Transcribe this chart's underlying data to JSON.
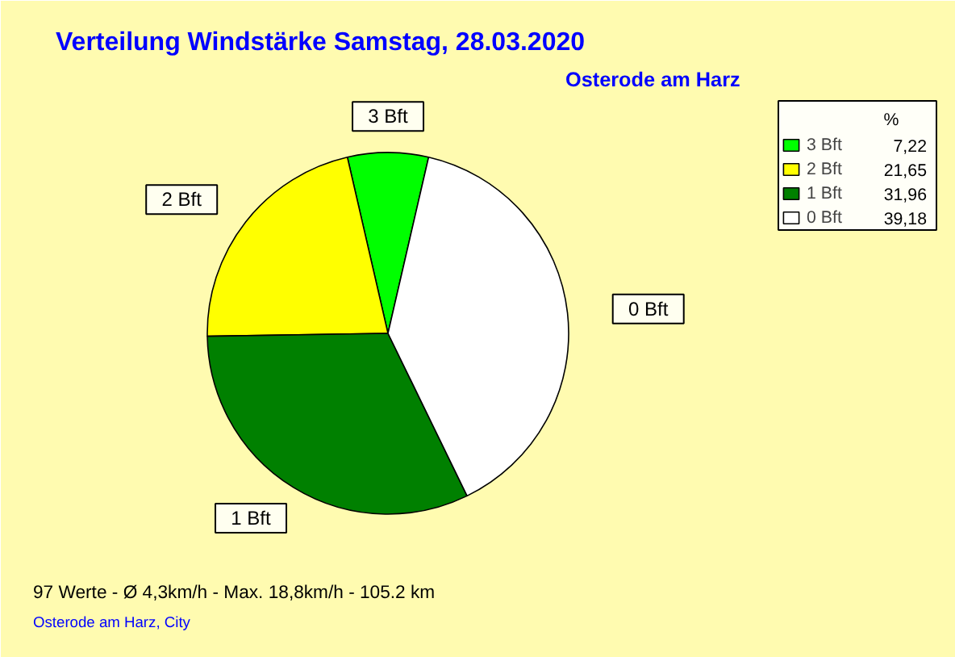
{
  "chart_data": {
    "type": "pie",
    "title": "Verteilung Windstärke  Samstag, 28.03.2020",
    "subtitle": "Osterode am Harz",
    "categories": [
      "3 Bft",
      "2 Bft",
      "1 Bft",
      "0 Bft"
    ],
    "values": [
      7.22,
      21.65,
      31.96,
      39.18
    ],
    "value_labels": [
      "7,22",
      "21,65",
      "31,96",
      "39,18"
    ],
    "colors": [
      "#00ff00",
      "#ffff00",
      "#008000",
      "#ffffff"
    ],
    "legend": "top right",
    "legend_title": "%",
    "annotations": [
      "97 Werte   -   Ø 4,3km/h  -  Max. 18,8km/h   -   105.2 km",
      "Osterode am Harz, City"
    ]
  }
}
